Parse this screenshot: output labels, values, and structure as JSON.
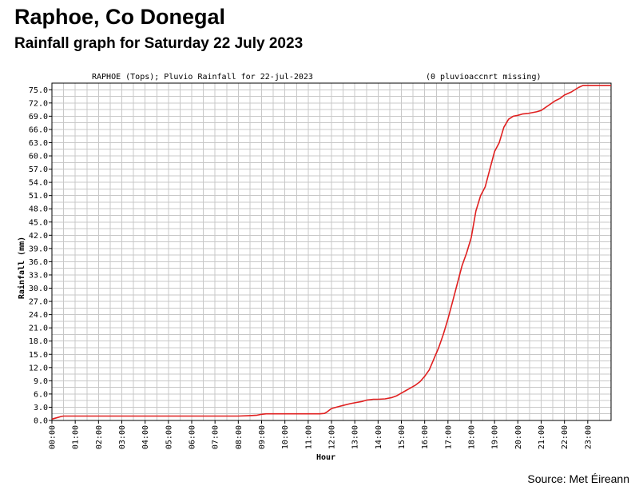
{
  "header": {
    "title": "Raphoe, Co Donegal",
    "subtitle": "Rainfall graph for Saturday 22 July 2023"
  },
  "source": "Source: Met Éireann",
  "chart_data": {
    "type": "line",
    "title": "RAPHOE (Tops); Pluvio Rainfall for 22-jul-2023",
    "note": "(0 pluvioaccnrt missing)",
    "xlabel": "Hour",
    "ylabel": "Rainfall (mm)",
    "xlim": [
      0,
      24
    ],
    "ylim": [
      0,
      76.5
    ],
    "x_tick_labels": [
      "00:00",
      "01:00",
      "02:00",
      "03:00",
      "04:00",
      "05:00",
      "06:00",
      "07:00",
      "08:00",
      "09:00",
      "10:00",
      "11:00",
      "12:00",
      "13:00",
      "14:00",
      "15:00",
      "16:00",
      "17:00",
      "18:00",
      "19:00",
      "20:00",
      "21:00",
      "22:00",
      "23:00"
    ],
    "y_tick_labels": [
      "0.0",
      "3.0",
      "6.0",
      "9.0",
      "12.0",
      "15.0",
      "18.0",
      "21.0",
      "24.0",
      "27.0",
      "30.0",
      "33.0",
      "36.0",
      "39.0",
      "42.0",
      "45.0",
      "48.0",
      "51.0",
      "54.0",
      "57.0",
      "60.0",
      "63.0",
      "66.0",
      "69.0",
      "72.0",
      "75.0"
    ],
    "grid": true,
    "line_color": "#e02020",
    "series": [
      {
        "x": [
          0.0,
          0.2,
          0.4,
          0.5,
          1.0,
          2.0,
          3.0,
          4.0,
          5.0,
          6.0,
          7.0,
          8.0,
          8.5,
          8.8,
          9.0,
          9.2,
          9.5,
          10.0,
          10.5,
          11.0,
          11.5,
          11.7,
          11.8,
          11.9,
          12.0,
          12.2,
          12.5,
          12.8,
          13.0,
          13.3,
          13.5,
          13.8,
          14.0,
          14.3,
          14.6,
          14.8,
          15.0,
          15.2,
          15.4,
          15.6,
          15.8,
          16.0,
          16.2,
          16.4,
          16.6,
          16.8,
          17.0,
          17.2,
          17.4,
          17.6,
          17.8,
          18.0,
          18.2,
          18.4,
          18.6,
          18.8,
          19.0,
          19.2,
          19.4,
          19.6,
          19.8,
          20.0,
          20.2,
          20.4,
          20.6,
          20.8,
          21.0,
          21.3,
          21.6,
          21.8,
          22.0,
          22.3,
          22.6,
          22.8,
          23.0,
          23.3,
          23.5,
          23.7,
          24.0
        ],
        "y": [
          0.3,
          0.6,
          0.9,
          1.0,
          1.0,
          1.0,
          1.0,
          1.0,
          1.0,
          1.0,
          1.0,
          1.0,
          1.1,
          1.2,
          1.4,
          1.5,
          1.5,
          1.5,
          1.5,
          1.5,
          1.5,
          1.6,
          1.9,
          2.3,
          2.7,
          3.0,
          3.4,
          3.8,
          4.0,
          4.3,
          4.6,
          4.8,
          4.8,
          4.9,
          5.2,
          5.6,
          6.2,
          6.8,
          7.4,
          8.0,
          8.8,
          10.0,
          11.5,
          14.0,
          16.5,
          19.5,
          23.0,
          27.0,
          31.0,
          35.0,
          38.0,
          41.5,
          47.5,
          51.0,
          53.0,
          57.0,
          61.0,
          63.0,
          66.5,
          68.3,
          69.0,
          69.2,
          69.5,
          69.6,
          69.8,
          70.0,
          70.3,
          71.4,
          72.5,
          73.0,
          73.8,
          74.5,
          75.5,
          76.0,
          76.0,
          76.0,
          76.0,
          76.0,
          76.0
        ]
      }
    ]
  }
}
